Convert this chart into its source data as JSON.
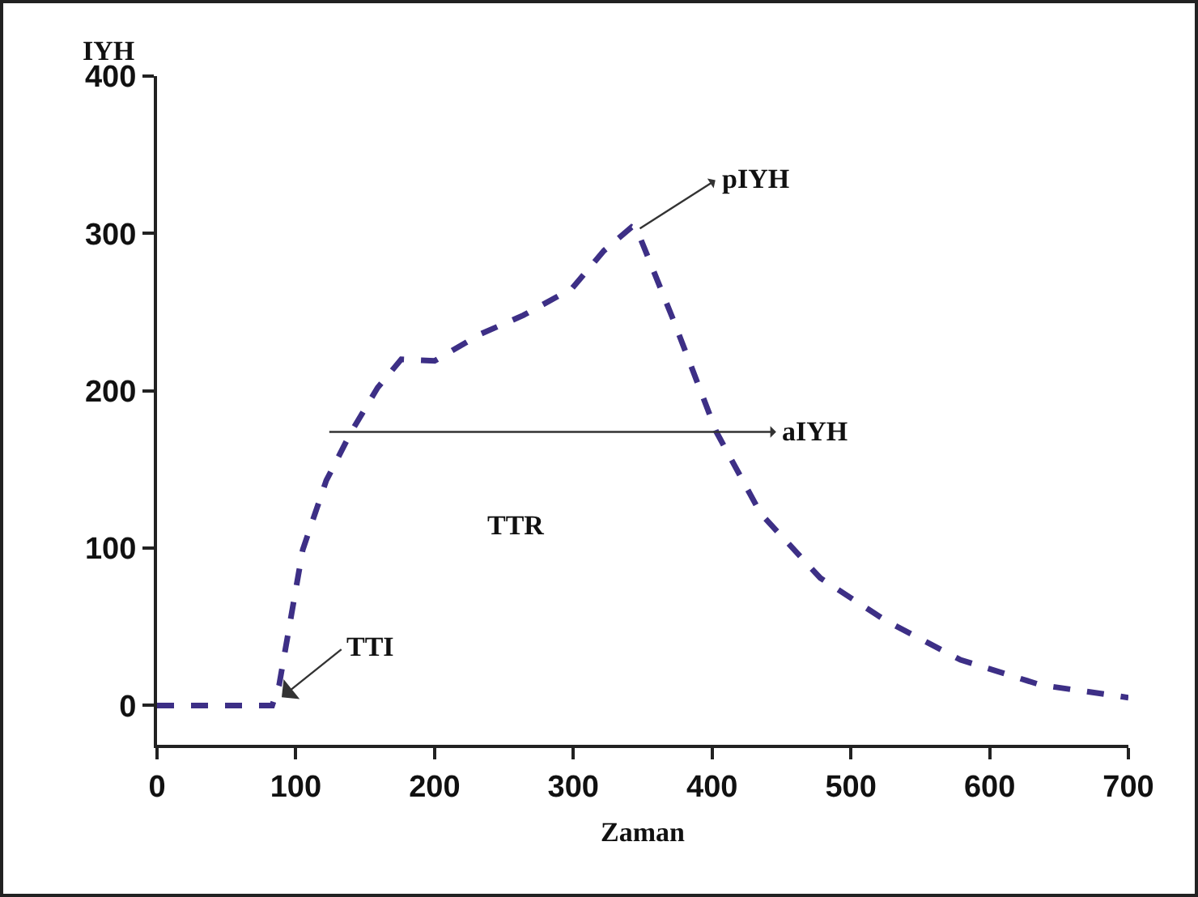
{
  "chart_data": {
    "type": "line",
    "xlabel": "Zaman",
    "ylabel": "IYH",
    "x": [
      0,
      83,
      88,
      105,
      122,
      140,
      159,
      176,
      200,
      233,
      264,
      299,
      322,
      342,
      346,
      373,
      403,
      435,
      478,
      525,
      579,
      637,
      700
    ],
    "series": [
      {
        "color": "#3d2f86",
        "values": [
          0,
          0,
          13,
          99,
          143,
          174,
          202,
          220,
          219,
          236,
          248,
          265,
          289,
          304,
          302,
          243,
          174,
          122,
          81,
          54,
          29,
          13,
          5
        ]
      }
    ],
    "xlim": [
      0,
      700
    ],
    "xticks": [
      0,
      100,
      200,
      300,
      400,
      500,
      600,
      700
    ],
    "ylim": [
      -25,
      400
    ],
    "yticks": [
      0,
      100,
      200,
      300,
      400
    ],
    "marker": "none",
    "line_style": "dashed",
    "annotations": [
      {
        "text": "TTI",
        "x": 88,
        "y": 4
      },
      "aIYH",
      {
        "text": "pIYH",
        "x": 346,
        "y": 302
      },
      "TTR"
    ]
  }
}
